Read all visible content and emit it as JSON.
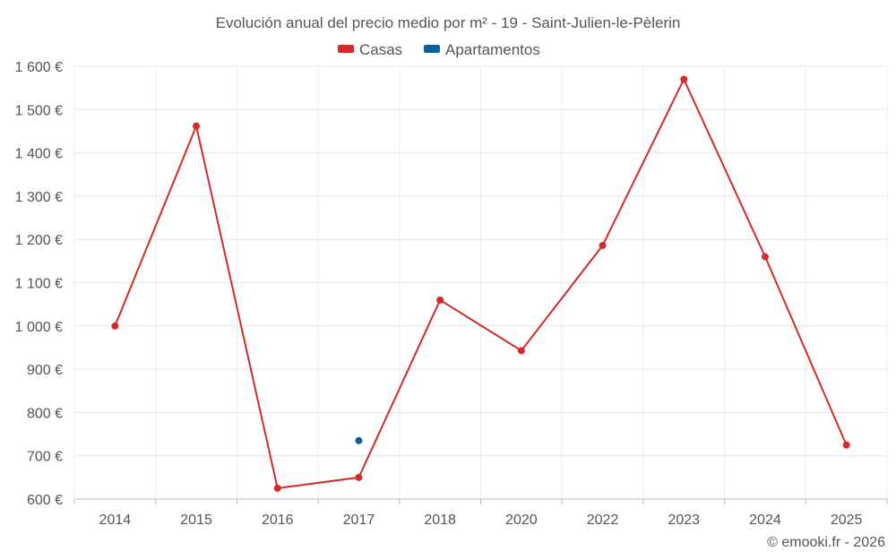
{
  "chart_data": {
    "type": "line",
    "title": "Evolución anual del precio medio por m² - 19 - Saint-Julien-le-Pèlerin",
    "categories": [
      "2014",
      "2015",
      "2016",
      "2017",
      "2018",
      "2020",
      "2022",
      "2023",
      "2024",
      "2025"
    ],
    "series": [
      {
        "name": "Casas",
        "color": "#d32a2a",
        "values": [
          1000,
          1462,
          625,
          650,
          1060,
          943,
          1186,
          1570,
          1160,
          725
        ]
      },
      {
        "name": "Apartamentos",
        "color": "#0b5f9a",
        "values": [
          null,
          null,
          null,
          735,
          null,
          null,
          null,
          null,
          null,
          null
        ]
      }
    ],
    "ylim": [
      600,
      1600
    ],
    "yticks": [
      600,
      700,
      800,
      900,
      1000,
      1100,
      1200,
      1300,
      1400,
      1500,
      1600
    ],
    "ytick_labels": [
      "600 €",
      "700 €",
      "800 €",
      "900 €",
      "1 000 €",
      "1 100 €",
      "1 200 €",
      "1 300 €",
      "1 400 €",
      "1 500 €",
      "1 600 €"
    ],
    "grid": true,
    "legend_position": "top-center",
    "credit": "© emooki.fr - 2026"
  }
}
